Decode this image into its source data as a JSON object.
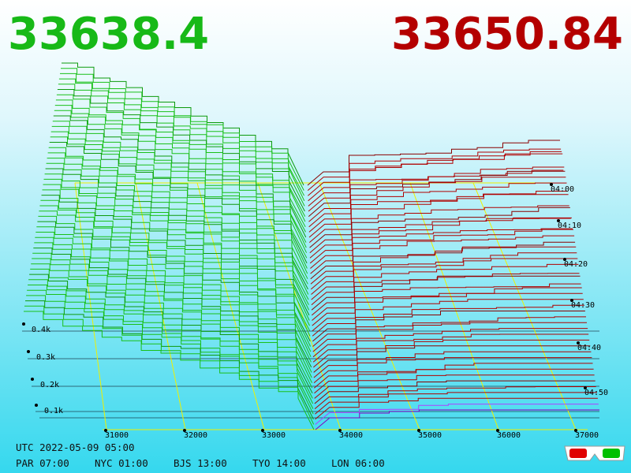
{
  "header": {
    "bid": "33638.4",
    "ask": "33650.84"
  },
  "price_axis": [
    "31000",
    "32000",
    "33000",
    "34000",
    "35000",
    "36000",
    "37000"
  ],
  "depth_axis": [
    "0.4k",
    "0.3k",
    "0.2k",
    "0.1k"
  ],
  "time_axis": [
    "04:00",
    "04:10",
    "04:20",
    "04:30",
    "04:40",
    "04:50"
  ],
  "footer": {
    "utc": "UTC 2022-05-09 05:00",
    "zones": [
      "PAR 07:00",
      "NYC 01:00",
      "BJS 13:00",
      "TYO 14:00",
      "LON 06:00"
    ]
  }
}
